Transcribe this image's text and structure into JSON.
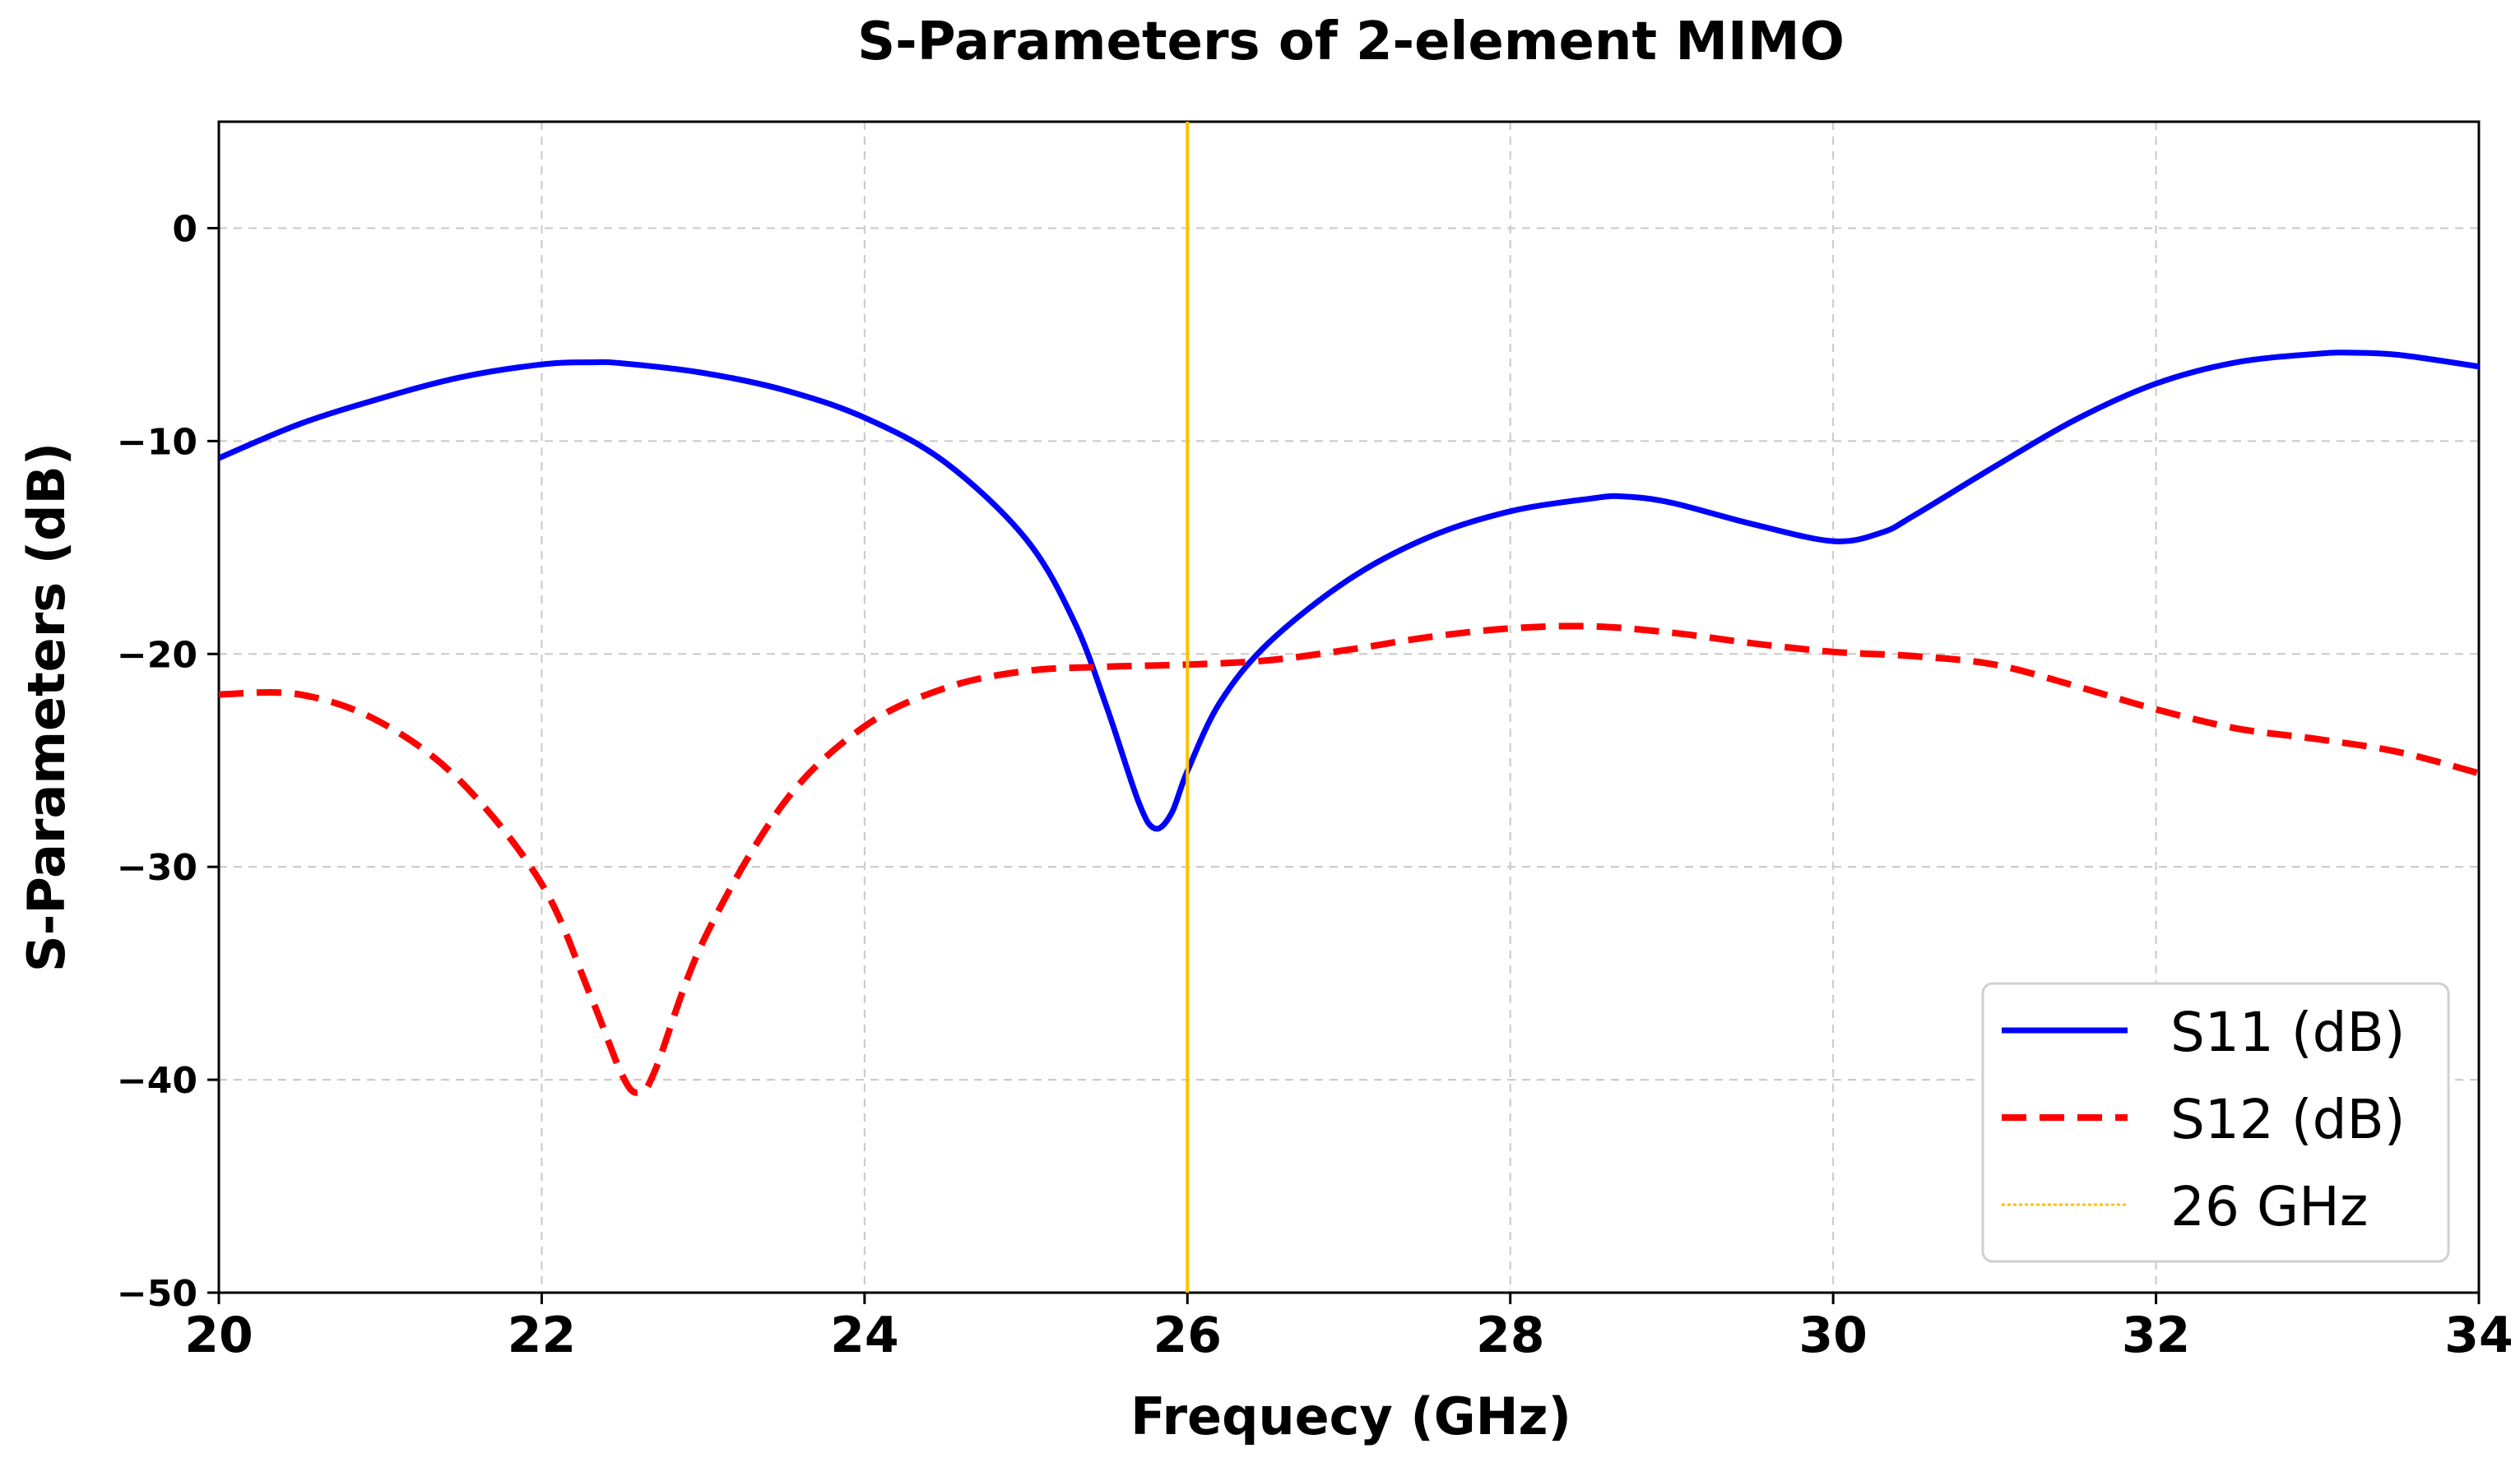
{
  "chart_data": {
    "type": "line",
    "title": "S-Parameters of 2-element MIMO",
    "xlabel": "Frequecy (GHz)",
    "ylabel": "S-Parameters (dB)",
    "xlim": [
      20,
      34
    ],
    "ylim": [
      -50,
      5
    ],
    "xticks": [
      20,
      22,
      24,
      26,
      28,
      30,
      32,
      34
    ],
    "yticks": [
      -50,
      -40,
      -30,
      -20,
      -10,
      0
    ],
    "xtick_labels": [
      "20",
      "22",
      "24",
      "26",
      "28",
      "30",
      "32",
      "34"
    ],
    "ytick_labels": [
      "−50",
      "−40",
      "−30",
      "−20",
      "−10",
      "0"
    ],
    "grid": true,
    "legend_position": "lower-right",
    "series": [
      {
        "name": "S11 (dB)",
        "color": "#0000ff",
        "style": "solid",
        "x": [
          20,
          20.5,
          21,
          21.5,
          22,
          22.3,
          22.5,
          23,
          23.5,
          24,
          24.5,
          25,
          25.3,
          25.5,
          25.7,
          25.8,
          25.9,
          26,
          26.2,
          26.5,
          27,
          27.5,
          28,
          28.5,
          28.7,
          29,
          29.5,
          30,
          30.3,
          30.5,
          31,
          31.5,
          32,
          32.5,
          33,
          33.2,
          33.5,
          34
        ],
        "values": [
          -10.8,
          -9.2,
          -8.0,
          -7.0,
          -6.4,
          -6.3,
          -6.35,
          -6.8,
          -7.6,
          -8.9,
          -11.0,
          -14.6,
          -18.5,
          -22.5,
          -27.0,
          -28.2,
          -27.5,
          -25.5,
          -22.3,
          -19.5,
          -16.5,
          -14.5,
          -13.3,
          -12.7,
          -12.6,
          -12.9,
          -13.9,
          -14.7,
          -14.3,
          -13.5,
          -11.2,
          -9.0,
          -7.3,
          -6.3,
          -5.9,
          -5.85,
          -5.95,
          -6.5
        ]
      },
      {
        "name": "S12 (dB)",
        "color": "#ff0000",
        "style": "dashed",
        "x": [
          20,
          20.5,
          21,
          21.5,
          22,
          22.3,
          22.5,
          22.6,
          22.7,
          23,
          23.5,
          24,
          24.5,
          25,
          25.5,
          26,
          26.5,
          27,
          27.5,
          28,
          28.5,
          29,
          29.5,
          30,
          30.5,
          31,
          31.5,
          32,
          32.5,
          33,
          33.5,
          34
        ],
        "values": [
          -21.9,
          -21.9,
          -23.2,
          -26.0,
          -30.8,
          -36.0,
          -39.8,
          -40.6,
          -39.6,
          -33.5,
          -27.0,
          -23.4,
          -21.6,
          -20.8,
          -20.6,
          -20.5,
          -20.3,
          -19.8,
          -19.2,
          -18.8,
          -18.7,
          -19.0,
          -19.5,
          -19.9,
          -20.1,
          -20.5,
          -21.5,
          -22.6,
          -23.5,
          -24.0,
          -24.6,
          -25.6
        ]
      },
      {
        "name": "26 GHz",
        "color": "#ffc000",
        "style": "vertical-line",
        "x": 26
      }
    ]
  }
}
